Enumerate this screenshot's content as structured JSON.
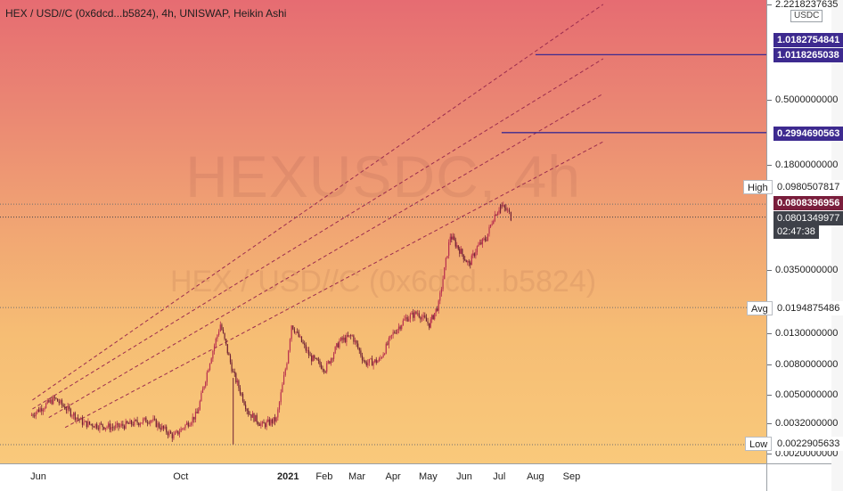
{
  "header": {
    "symbol_line": "HEX / USD//C (0x6dcd...b5824), 4h, UNISWAP, Heikin Ashi"
  },
  "watermark": {
    "main": "HEXUSDC, 4h",
    "sub": "HEX / USD//C (0x6dcd...b5824)"
  },
  "price_scale": {
    "currency": "USDC",
    "ticks": [
      "2.2218237635",
      "0.5000000000",
      "0.1800000000",
      "0.0350000000",
      "0.0130000000",
      "0.0080000000",
      "0.0050000000",
      "0.0032000000",
      "0.0020000000"
    ]
  },
  "price_tags": {
    "line1": "1.0182754841",
    "line2": "1.0118265038",
    "line3": "0.2994690563",
    "prev_close": "0.0808396956",
    "last_price": "0.0801349977",
    "countdown": "02:47:38"
  },
  "stats": {
    "high_label": "High",
    "high_value": "0.0980507817",
    "avg_label": "Avg",
    "avg_value": "0.0194875486",
    "low_label": "Low",
    "low_value": "0.0022905633"
  },
  "time_axis": {
    "labels": [
      "Jun",
      "Oct",
      "2021",
      "Feb",
      "Mar",
      "Apr",
      "May",
      "Jun",
      "Jul",
      "Aug",
      "Sep"
    ]
  },
  "colors": {
    "line_purple": "#3d2a8f",
    "candle_dark": "#6e1f33",
    "trend_line": "#9b2b4e",
    "last_price_bg": "#3e4149",
    "prev_close_bg": "#7a1e3c"
  },
  "chart_data": {
    "type": "candlestick",
    "scale": "log",
    "timeframe": "4h",
    "chart_style": "Heikin Ashi",
    "exchange": "UNISWAP",
    "ylim": [
      0.0019,
      2.3
    ],
    "x_range": [
      "2020-05-20",
      "2021-09-28"
    ],
    "close_series": [
      {
        "date": "2020-05-25",
        "value": 0.0036
      },
      {
        "date": "2020-06-15",
        "value": 0.0047
      },
      {
        "date": "2020-07-10",
        "value": 0.0032
      },
      {
        "date": "2020-08-05",
        "value": 0.003
      },
      {
        "date": "2020-09-05",
        "value": 0.0034
      },
      {
        "date": "2020-09-25",
        "value": 0.0026
      },
      {
        "date": "2020-10-15",
        "value": 0.0037
      },
      {
        "date": "2020-10-26",
        "value": 0.0085
      },
      {
        "date": "2020-11-04",
        "value": 0.015
      },
      {
        "date": "2020-11-15",
        "value": 0.007
      },
      {
        "date": "2020-11-28",
        "value": 0.0038
      },
      {
        "date": "2020-12-10",
        "value": 0.0031
      },
      {
        "date": "2020-12-22",
        "value": 0.0034
      },
      {
        "date": "2020-12-31",
        "value": 0.0085
      },
      {
        "date": "2021-01-04",
        "value": 0.015
      },
      {
        "date": "2021-01-20",
        "value": 0.009
      },
      {
        "date": "2021-02-02",
        "value": 0.0075
      },
      {
        "date": "2021-02-14",
        "value": 0.0115
      },
      {
        "date": "2021-02-25",
        "value": 0.0125
      },
      {
        "date": "2021-03-08",
        "value": 0.0082
      },
      {
        "date": "2021-03-20",
        "value": 0.0085
      },
      {
        "date": "2021-04-01",
        "value": 0.013
      },
      {
        "date": "2021-04-12",
        "value": 0.0165
      },
      {
        "date": "2021-04-22",
        "value": 0.018
      },
      {
        "date": "2021-05-02",
        "value": 0.015
      },
      {
        "date": "2021-05-10",
        "value": 0.0205
      },
      {
        "date": "2021-05-20",
        "value": 0.06
      },
      {
        "date": "2021-05-28",
        "value": 0.048
      },
      {
        "date": "2021-06-05",
        "value": 0.038
      },
      {
        "date": "2021-06-12",
        "value": 0.05
      },
      {
        "date": "2021-06-20",
        "value": 0.058
      },
      {
        "date": "2021-06-26",
        "value": 0.08
      },
      {
        "date": "2021-07-02",
        "value": 0.096
      },
      {
        "date": "2021-07-08",
        "value": 0.088
      },
      {
        "date": "2021-07-11",
        "value": 0.0801
      }
    ],
    "horizontal_lines": [
      {
        "value": 1.0118265038,
        "start_date": "2021-08-01"
      },
      {
        "value": 0.2994690563,
        "start_date": "2021-07-03"
      }
    ],
    "trend_lines": [
      {
        "from": {
          "date": "2020-05-27",
          "value": 0.0046
        },
        "to": {
          "date": "2021-09-28",
          "value": 2.22
        }
      },
      {
        "from": {
          "date": "2020-05-27",
          "value": 0.004
        },
        "to": {
          "date": "2021-09-28",
          "value": 0.95
        }
      },
      {
        "from": {
          "date": "2020-06-10",
          "value": 0.0035
        },
        "to": {
          "date": "2021-09-28",
          "value": 0.55
        }
      },
      {
        "from": {
          "date": "2020-06-24",
          "value": 0.003
        },
        "to": {
          "date": "2021-09-28",
          "value": 0.26
        }
      }
    ]
  }
}
